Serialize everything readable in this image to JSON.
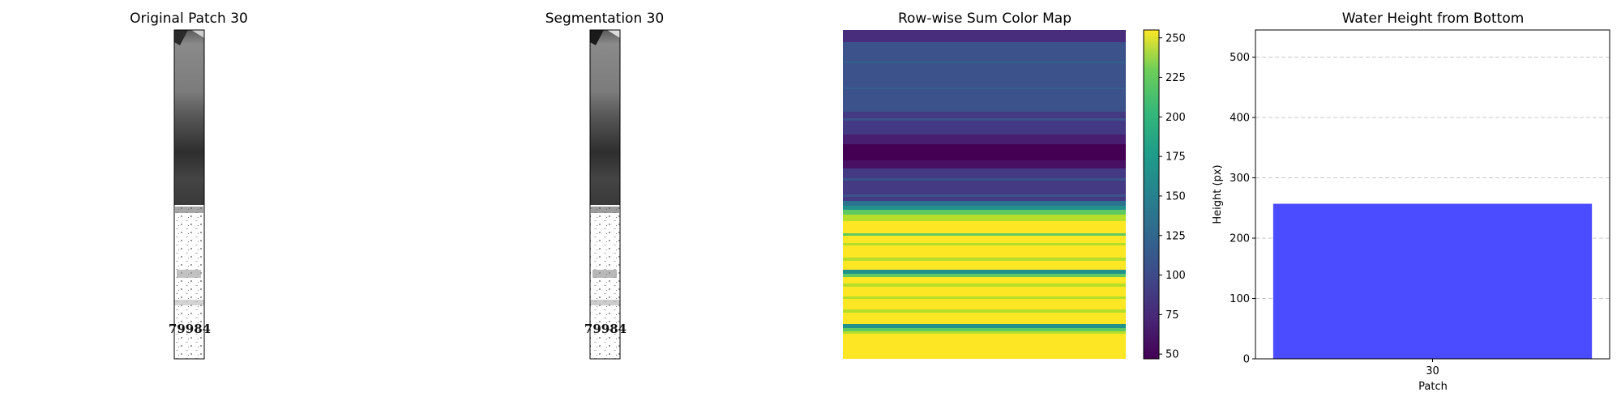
{
  "panels": {
    "original": {
      "title": "Original Patch 30",
      "overlay_text": "79984"
    },
    "segmentation": {
      "title": "Segmentation 30",
      "overlay_text": "79984"
    },
    "colormap": {
      "title": "Row-wise Sum Color Map",
      "colorbar_ticks": [
        "250",
        "225",
        "200",
        "175",
        "150",
        "125",
        "100",
        "75",
        "50"
      ],
      "colormap": "viridis"
    }
  },
  "chart_data": {
    "type": "bar",
    "title": "Water Height from Bottom",
    "xlabel": "Patch",
    "ylabel": "Height (px)",
    "categories": [
      "30"
    ],
    "values": [
      257
    ],
    "ylim": [
      0,
      545
    ],
    "yticks": [
      "0",
      "100",
      "200",
      "300",
      "400",
      "500"
    ],
    "bar_color": "#4b4bff",
    "grid": "y-dashed"
  }
}
